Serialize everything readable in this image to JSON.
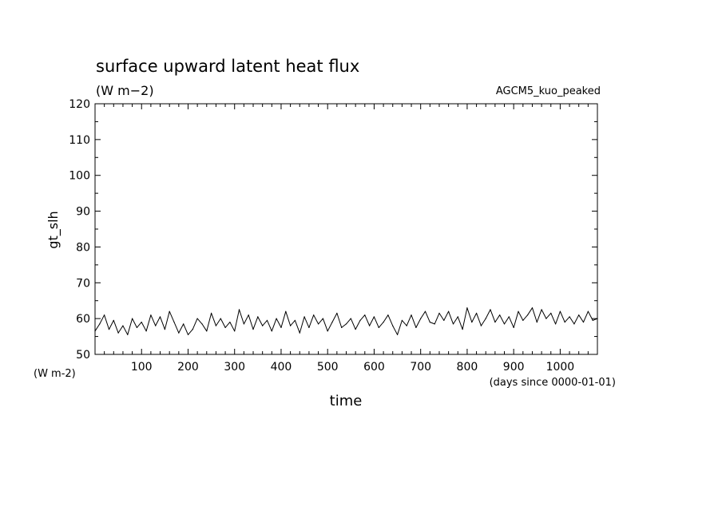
{
  "chart_data": {
    "type": "line",
    "title": "surface upward latent heat flux",
    "subtitle": "(W m−2)",
    "run_label": "AGCM5_kuo_peaked",
    "xlabel": "time",
    "x_unit": "(days since 0000-01-01)",
    "ylabel": "gt_slh",
    "y_unit": "(W m-2)",
    "xlim": [
      0,
      1080
    ],
    "ylim": [
      50,
      120
    ],
    "x_ticks": [
      100,
      200,
      300,
      400,
      500,
      600,
      700,
      800,
      900,
      1000
    ],
    "y_ticks": [
      50,
      60,
      70,
      80,
      90,
      100,
      110,
      120
    ],
    "grid": false,
    "series": [
      {
        "color": "#000000",
        "x": [
          0,
          10,
          20,
          30,
          40,
          50,
          60,
          70,
          80,
          90,
          100,
          110,
          120,
          130,
          140,
          150,
          160,
          170,
          180,
          190,
          200,
          210,
          220,
          230,
          240,
          250,
          260,
          270,
          280,
          290,
          300,
          310,
          320,
          330,
          340,
          350,
          360,
          370,
          380,
          390,
          400,
          410,
          420,
          430,
          440,
          450,
          460,
          470,
          480,
          490,
          500,
          510,
          520,
          530,
          540,
          550,
          560,
          570,
          580,
          590,
          600,
          610,
          620,
          630,
          640,
          650,
          660,
          670,
          680,
          690,
          700,
          710,
          720,
          730,
          740,
          750,
          760,
          770,
          780,
          790,
          800,
          810,
          820,
          830,
          840,
          850,
          860,
          870,
          880,
          890,
          900,
          910,
          920,
          930,
          940,
          950,
          960,
          970,
          980,
          990,
          1000,
          1010,
          1020,
          1030,
          1040,
          1050,
          1060,
          1070,
          1080
        ],
        "values": [
          56.5,
          58.5,
          61,
          57,
          59.5,
          56,
          58,
          55.5,
          60,
          57.5,
          59,
          56.5,
          61,
          58,
          60.5,
          57,
          62,
          59,
          56,
          58.5,
          55.5,
          57,
          60,
          58.5,
          56.5,
          61.5,
          58,
          60,
          57.5,
          59,
          56.5,
          62.5,
          58.5,
          61,
          57,
          60.5,
          58,
          59.5,
          56.5,
          60,
          57.5,
          62,
          58,
          59.5,
          56,
          60.5,
          57.5,
          61,
          58.5,
          60,
          56.5,
          59,
          61.5,
          57.5,
          58.5,
          60,
          57,
          59.5,
          61,
          58,
          60.5,
          57.5,
          59,
          61,
          58,
          55.5,
          59.5,
          58,
          61,
          57.5,
          60,
          62,
          59,
          58.5,
          61.5,
          59.5,
          62,
          58.5,
          60.5,
          57,
          63,
          59,
          61.5,
          58,
          60,
          62.5,
          59,
          61,
          58.5,
          60.5,
          57.5,
          62,
          59.5,
          61,
          63,
          59,
          62.5,
          60,
          61.5,
          58.5,
          62,
          59,
          60.5,
          58.5,
          61,
          59,
          62,
          59.5,
          60
        ]
      }
    ]
  }
}
